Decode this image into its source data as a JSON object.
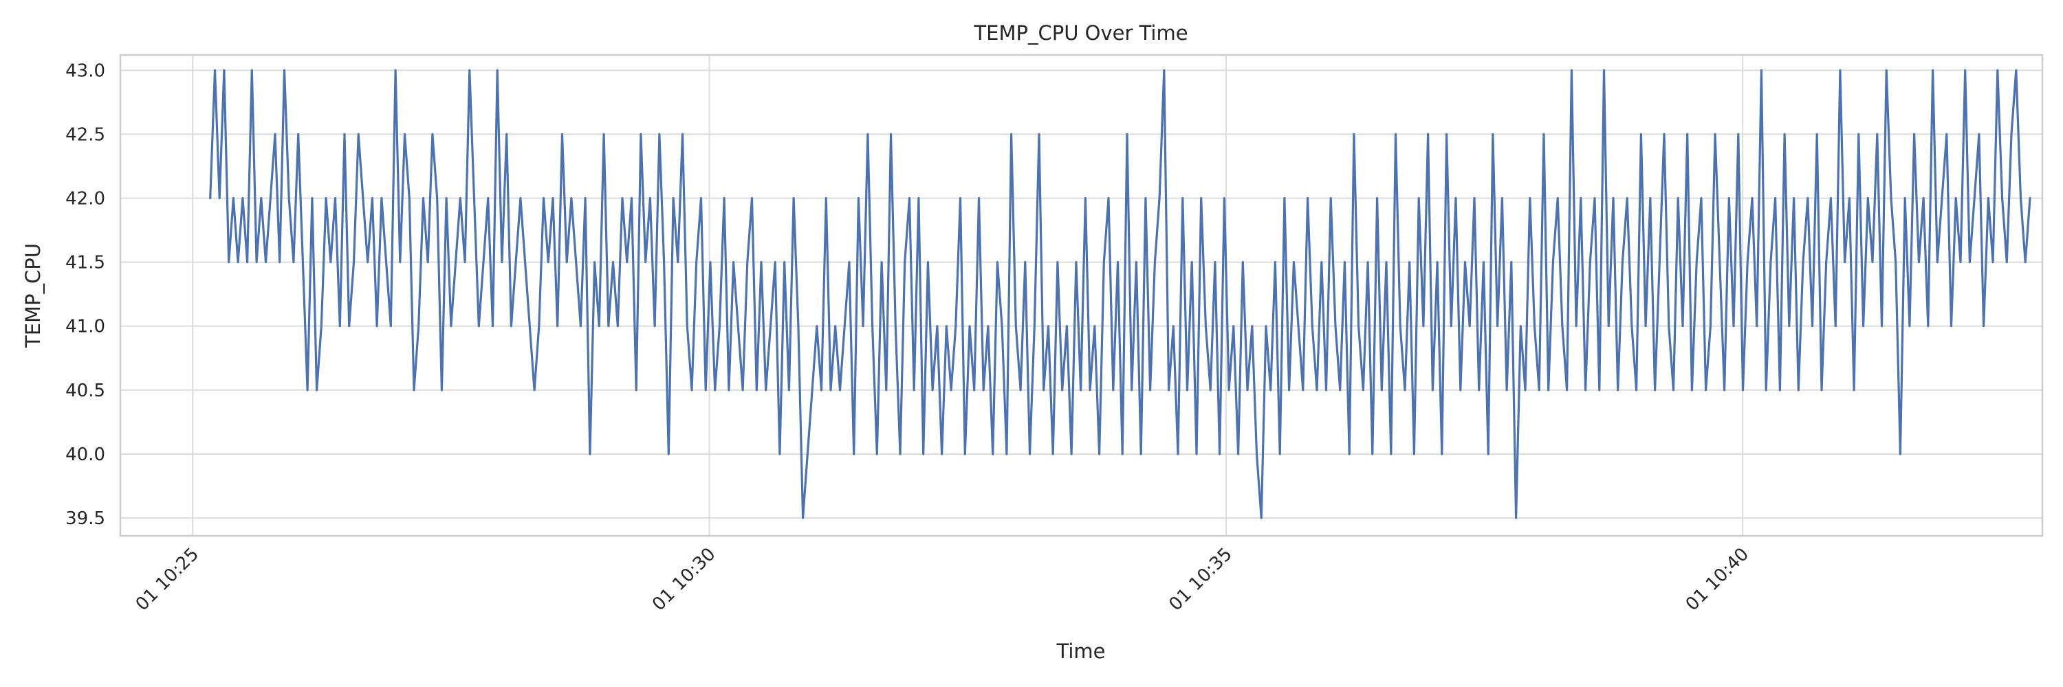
{
  "chart_data": {
    "type": "line",
    "title": "TEMP_CPU Over Time",
    "xlabel": "Time",
    "ylabel": "TEMP_CPU",
    "x_ticks": [
      {
        "label": "01 10:25",
        "minute": 25
      },
      {
        "label": "01 10:30",
        "minute": 30
      },
      {
        "label": "01 10:35",
        "minute": 35
      },
      {
        "label": "01 10:40",
        "minute": 40
      }
    ],
    "xlim_minutes": [
      24.3,
      42.9
    ],
    "y_ticks": [
      39.5,
      40.0,
      40.5,
      41.0,
      41.5,
      42.0,
      42.5,
      43.0
    ],
    "ylim": [
      39.36,
      43.12
    ],
    "grid": true,
    "series": [
      {
        "color": "#4c72b0",
        "step_minutes": 0.0166667,
        "start_minute": 25.17,
        "values": [
          42.0,
          43.0,
          42.0,
          43.0,
          41.5,
          42.0,
          41.5,
          42.0,
          41.5,
          43.0,
          41.5,
          42.0,
          41.5,
          42.0,
          42.5,
          41.5,
          43.0,
          42.0,
          41.5,
          42.5,
          41.5,
          40.5,
          42.0,
          40.5,
          41.0,
          42.0,
          41.5,
          42.0,
          41.0,
          42.5,
          41.0,
          41.5,
          42.5,
          42.0,
          41.5,
          42.0,
          41.0,
          42.0,
          41.5,
          41.0,
          43.0,
          41.5,
          42.5,
          42.0,
          40.5,
          41.0,
          42.0,
          41.5,
          42.5,
          42.0,
          40.5,
          42.0,
          41.0,
          41.5,
          42.0,
          41.5,
          43.0,
          42.0,
          41.0,
          41.5,
          42.0,
          41.0,
          43.0,
          41.5,
          42.5,
          41.0,
          41.5,
          42.0,
          41.5,
          41.0,
          40.5,
          41.0,
          42.0,
          41.5,
          42.0,
          41.0,
          42.5,
          41.5,
          42.0,
          41.5,
          41.0,
          42.0,
          40.0,
          41.5,
          41.0,
          42.5,
          41.0,
          41.5,
          41.0,
          42.0,
          41.5,
          42.0,
          40.5,
          42.5,
          41.5,
          42.0,
          41.0,
          42.5,
          41.5,
          40.0,
          42.0,
          41.5,
          42.5,
          41.0,
          40.5,
          41.5,
          42.0,
          40.5,
          41.5,
          40.5,
          41.0,
          42.0,
          40.5,
          41.5,
          41.0,
          40.5,
          41.5,
          42.0,
          40.5,
          41.5,
          40.5,
          41.0,
          41.5,
          40.0,
          41.5,
          40.5,
          42.0,
          41.0,
          39.5,
          40.0,
          40.5,
          41.0,
          40.5,
          42.0,
          40.5,
          41.0,
          40.5,
          41.0,
          41.5,
          40.0,
          42.0,
          41.0,
          42.5,
          41.0,
          40.0,
          41.5,
          40.5,
          42.5,
          41.0,
          40.0,
          41.5,
          42.0,
          40.5,
          42.0,
          40.0,
          41.5,
          40.5,
          41.0,
          40.0,
          41.0,
          40.5,
          41.0,
          42.0,
          40.0,
          41.0,
          40.5,
          42.0,
          40.5,
          41.0,
          40.0,
          41.5,
          41.0,
          40.0,
          42.5,
          41.0,
          40.5,
          41.5,
          40.0,
          41.0,
          42.5,
          40.5,
          41.0,
          40.0,
          41.5,
          40.5,
          41.0,
          40.0,
          41.5,
          40.5,
          42.0,
          40.5,
          41.0,
          40.0,
          41.5,
          42.0,
          40.5,
          41.5,
          40.0,
          42.5,
          40.5,
          41.5,
          40.0,
          42.0,
          40.5,
          41.5,
          42.0,
          43.0,
          40.5,
          41.0,
          40.0,
          42.0,
          40.5,
          41.5,
          40.0,
          42.0,
          41.0,
          40.5,
          41.5,
          40.0,
          42.0,
          40.5,
          41.0,
          40.0,
          41.5,
          40.5,
          41.0,
          40.0,
          39.5,
          41.0,
          40.5,
          41.5,
          40.0,
          42.0,
          40.5,
          41.5,
          41.0,
          40.5,
          42.0,
          41.0,
          40.5,
          41.5,
          40.5,
          42.0,
          41.0,
          40.5,
          41.5,
          40.0,
          42.5,
          41.0,
          40.5,
          41.5,
          40.0,
          42.0,
          40.5,
          41.5,
          40.0,
          42.5,
          41.0,
          40.5,
          41.5,
          40.0,
          42.0,
          41.0,
          42.5,
          40.5,
          41.5,
          40.0,
          42.5,
          41.0,
          42.0,
          40.5,
          41.5,
          41.0,
          42.0,
          40.5,
          41.5,
          40.0,
          42.5,
          41.0,
          42.0,
          40.5,
          41.5,
          39.5,
          41.0,
          40.5,
          42.0,
          41.0,
          40.5,
          42.5,
          40.5,
          41.5,
          42.0,
          41.0,
          40.5,
          43.0,
          41.0,
          42.0,
          40.5,
          41.5,
          42.0,
          40.5,
          43.0,
          41.0,
          42.0,
          40.5,
          41.5,
          42.0,
          41.0,
          40.5,
          42.5,
          41.0,
          42.0,
          40.5,
          41.5,
          42.5,
          41.0,
          40.5,
          42.0,
          41.0,
          42.5,
          40.5,
          41.5,
          42.0,
          40.5,
          41.0,
          42.5,
          41.5,
          40.5,
          42.0,
          41.0,
          42.5,
          40.5,
          41.5,
          42.0,
          41.0,
          43.0,
          40.5,
          41.5,
          42.0,
          40.5,
          42.5,
          41.0,
          42.0,
          40.5,
          41.5,
          42.0,
          41.0,
          42.5,
          40.5,
          41.5,
          42.0,
          41.0,
          43.0,
          41.5,
          42.0,
          40.5,
          42.5,
          41.0,
          42.0,
          41.5,
          42.5,
          41.0,
          43.0,
          42.0,
          41.5,
          40.0,
          42.0,
          41.0,
          42.5,
          41.5,
          42.0,
          41.0,
          43.0,
          41.5,
          42.0,
          42.5,
          41.0,
          42.0,
          41.5,
          43.0,
          41.5,
          42.0,
          42.5,
          41.0,
          42.0,
          41.5,
          43.0,
          42.0,
          41.5,
          42.5,
          43.0,
          42.0,
          41.5,
          42.0
        ]
      }
    ]
  }
}
